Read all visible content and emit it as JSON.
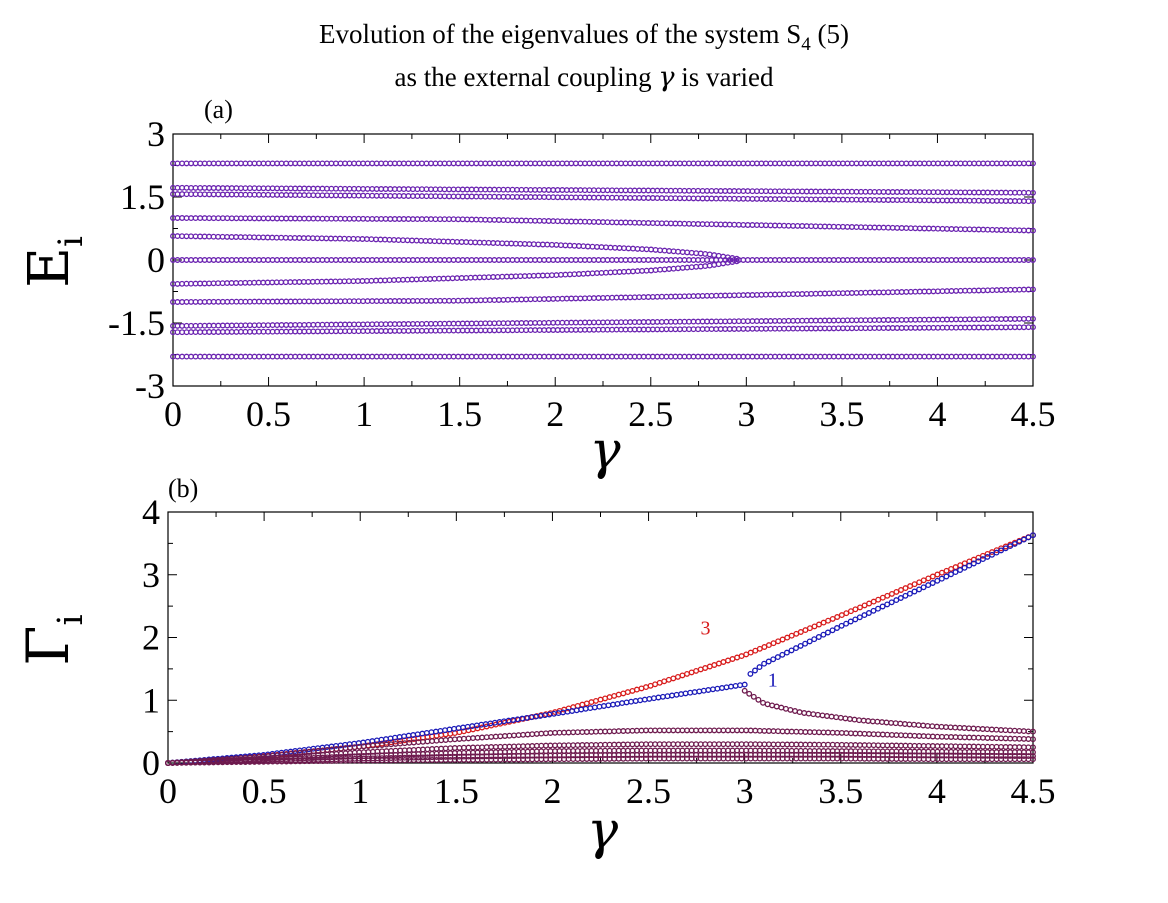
{
  "title": {
    "line1_pre": "Evolution of the eigenvalues of the system S",
    "line1_sub": "4",
    "line1_post": " (5)",
    "line2_pre": "as the external coupling ",
    "line2_symbol": "γ",
    "line2_post": " is varied"
  },
  "colors": {
    "purple": "#6a22b0",
    "red": "#d81c1c",
    "blue": "#1a1ab8",
    "maroon": "#6e1a4e"
  },
  "chart_data": [
    {
      "type": "scatter",
      "panel_label": "(a)",
      "xlabel": "γ",
      "ylabel_main": "E",
      "ylabel_sub": "i",
      "xlim": [
        0,
        4.5
      ],
      "ylim": [
        -3,
        3
      ],
      "xticks": [
        0,
        0.5,
        1,
        1.5,
        2,
        2.5,
        3,
        3.5,
        4,
        4.5
      ],
      "xtick_labels": [
        "0",
        "0.5",
        "1",
        "1.5",
        "2",
        "2.5",
        "3",
        "3.5",
        "4",
        "4.5"
      ],
      "yticks": [
        -3,
        -1.5,
        0,
        1.5,
        3
      ],
      "ytick_labels": [
        "-3",
        "-1.5",
        "0",
        "1.5",
        "3"
      ],
      "series": [
        {
          "color": "purple",
          "values": [
            [
              0,
              2.3
            ],
            [
              4.5,
              2.3
            ]
          ]
        },
        {
          "color": "purple",
          "values": [
            [
              0,
              1.72
            ],
            [
              4.5,
              1.6
            ]
          ]
        },
        {
          "color": "purple",
          "values": [
            [
              0,
              1.57
            ],
            [
              4.5,
              1.4
            ]
          ]
        },
        {
          "color": "purple",
          "values": [
            [
              0,
              1.0
            ],
            [
              1.5,
              0.97
            ],
            [
              4.5,
              0.7
            ]
          ]
        },
        {
          "color": "purple",
          "values": [
            [
              0,
              0.57
            ],
            [
              1,
              0.5
            ],
            [
              2,
              0.36
            ],
            [
              2.5,
              0.25
            ],
            [
              2.8,
              0.14
            ],
            [
              2.95,
              0.03
            ]
          ]
        },
        {
          "color": "purple",
          "values": [
            [
              0,
              0
            ],
            [
              4.5,
              0
            ]
          ]
        },
        {
          "color": "purple",
          "values": [
            [
              0,
              -0.57
            ],
            [
              1,
              -0.5
            ],
            [
              2,
              -0.36
            ],
            [
              2.5,
              -0.25
            ],
            [
              2.8,
              -0.14
            ],
            [
              2.95,
              -0.03
            ]
          ]
        },
        {
          "color": "purple",
          "values": [
            [
              0,
              -1.0
            ],
            [
              1.5,
              -0.97
            ],
            [
              4.5,
              -0.7
            ]
          ]
        },
        {
          "color": "purple",
          "values": [
            [
              0,
              -1.57
            ],
            [
              4.5,
              -1.4
            ]
          ]
        },
        {
          "color": "purple",
          "values": [
            [
              0,
              -1.72
            ],
            [
              4.5,
              -1.6
            ]
          ]
        },
        {
          "color": "purple",
          "values": [
            [
              0,
              -2.3
            ],
            [
              4.5,
              -2.3
            ]
          ]
        }
      ]
    },
    {
      "type": "scatter",
      "panel_label": "(b)",
      "xlabel": "γ",
      "ylabel_main": "Γ",
      "ylabel_sub": "i",
      "xlim": [
        0,
        4.5
      ],
      "ylim": [
        0,
        4
      ],
      "xticks": [
        0,
        0.5,
        1,
        1.5,
        2,
        2.5,
        3,
        3.5,
        4,
        4.5
      ],
      "xtick_labels": [
        "0",
        "0.5",
        "1",
        "1.5",
        "2",
        "2.5",
        "3",
        "3.5",
        "4",
        "4.5"
      ],
      "yticks": [
        0,
        1,
        2,
        3,
        4
      ],
      "ytick_labels": [
        "0",
        "1",
        "2",
        "3",
        "4"
      ],
      "annotations": [
        {
          "text": "3",
          "x": 2.77,
          "y": 2.05,
          "color": "red"
        },
        {
          "text": "1",
          "x": 3.12,
          "y": 1.22,
          "color": "blue"
        }
      ],
      "series": [
        {
          "color": "red",
          "values": [
            [
              0,
              0
            ],
            [
              0.5,
              0.11
            ],
            [
              1,
              0.26
            ],
            [
              1.5,
              0.48
            ],
            [
              2,
              0.8
            ],
            [
              2.5,
              1.22
            ],
            [
              3,
              1.72
            ],
            [
              3.5,
              2.35
            ],
            [
              4,
              3.0
            ],
            [
              4.5,
              3.63
            ]
          ]
        },
        {
          "color": "blue",
          "values": [
            [
              0,
              0
            ],
            [
              0.5,
              0.13
            ],
            [
              1,
              0.32
            ],
            [
              1.5,
              0.55
            ],
            [
              2,
              0.78
            ],
            [
              2.5,
              1.02
            ],
            [
              3,
              1.25
            ]
          ]
        },
        {
          "color": "blue",
          "values": [
            [
              3.03,
              1.42
            ],
            [
              3.1,
              1.58
            ],
            [
              3.3,
              1.88
            ],
            [
              3.5,
              2.18
            ],
            [
              4,
              2.9
            ],
            [
              4.5,
              3.63
            ]
          ]
        },
        {
          "color": "maroon",
          "values": [
            [
              3.0,
              1.15
            ],
            [
              3.1,
              0.95
            ],
            [
              3.3,
              0.8
            ],
            [
              3.6,
              0.68
            ],
            [
              4,
              0.58
            ],
            [
              4.5,
              0.5
            ]
          ]
        },
        {
          "color": "maroon",
          "values": [
            [
              0,
              0
            ],
            [
              0.5,
              0.1
            ],
            [
              1,
              0.26
            ],
            [
              1.5,
              0.38
            ],
            [
              2,
              0.48
            ],
            [
              2.5,
              0.52
            ],
            [
              3,
              0.52
            ],
            [
              3.5,
              0.48
            ],
            [
              4,
              0.42
            ],
            [
              4.5,
              0.38
            ]
          ]
        },
        {
          "color": "maroon",
          "values": [
            [
              0,
              0
            ],
            [
              0.5,
              0.07
            ],
            [
              1,
              0.17
            ],
            [
              1.5,
              0.24
            ],
            [
              2,
              0.28
            ],
            [
              2.5,
              0.3
            ],
            [
              3,
              0.3
            ],
            [
              3.5,
              0.29
            ],
            [
              4,
              0.27
            ],
            [
              4.5,
              0.25
            ]
          ]
        },
        {
          "color": "maroon",
          "values": [
            [
              0,
              0
            ],
            [
              0.5,
              0.05
            ],
            [
              1,
              0.11
            ],
            [
              1.5,
              0.16
            ],
            [
              2,
              0.19
            ],
            [
              2.5,
              0.2
            ],
            [
              3,
              0.2
            ],
            [
              3.5,
              0.19
            ],
            [
              4,
              0.18
            ],
            [
              4.5,
              0.17
            ]
          ]
        },
        {
          "color": "maroon",
          "values": [
            [
              0,
              0
            ],
            [
              0.5,
              0.03
            ],
            [
              1,
              0.07
            ],
            [
              1.5,
              0.1
            ],
            [
              2,
              0.12
            ],
            [
              2.5,
              0.13
            ],
            [
              3,
              0.13
            ],
            [
              3.5,
              0.13
            ],
            [
              4,
              0.12
            ],
            [
              4.5,
              0.11
            ]
          ]
        },
        {
          "color": "maroon",
          "values": [
            [
              0,
              0
            ],
            [
              0.5,
              0.02
            ],
            [
              1,
              0.04
            ],
            [
              1.5,
              0.05
            ],
            [
              2,
              0.06
            ],
            [
              2.5,
              0.07
            ],
            [
              3,
              0.07
            ],
            [
              3.5,
              0.07
            ],
            [
              4,
              0.06
            ],
            [
              4.5,
              0.06
            ]
          ]
        }
      ]
    }
  ]
}
